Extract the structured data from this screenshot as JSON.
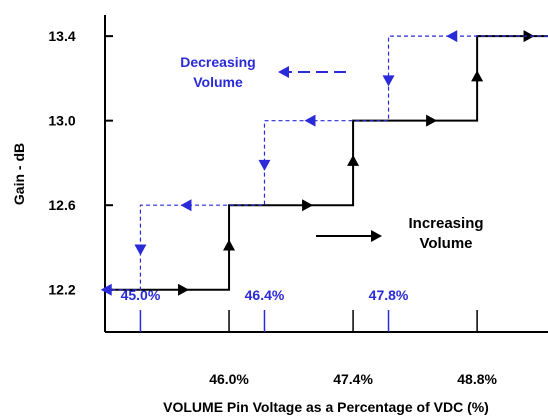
{
  "chart_data": {
    "type": "line",
    "ylabel": "Gain - dB",
    "xlabel": "VOLUME Pin Voltage as a Percentage of VDC (%)",
    "y_ticks": [
      "12.2",
      "12.6",
      "13.0",
      "13.4"
    ],
    "x_ticks": [
      "46.0%",
      "47.4%",
      "48.8%"
    ],
    "x_ticks_decreasing": [
      "45.0%",
      "46.4%",
      "47.8%"
    ],
    "ylim": [
      12.0,
      13.5
    ],
    "xlim": [
      44.6,
      49.6
    ],
    "grid": false,
    "series": [
      {
        "name": "Increasing Volume",
        "color": "#000000",
        "style": "solid",
        "points": [
          [
            44.6,
            12.2
          ],
          [
            46.0,
            12.2
          ],
          [
            46.0,
            12.6
          ],
          [
            47.4,
            12.6
          ],
          [
            47.4,
            13.0
          ],
          [
            48.8,
            13.0
          ],
          [
            48.8,
            13.4
          ],
          [
            49.6,
            13.4
          ]
        ]
      },
      {
        "name": "Decreasing Volume",
        "color": "#2a2ad8",
        "style": "dashed",
        "points": [
          [
            49.6,
            13.4
          ],
          [
            47.8,
            13.4
          ],
          [
            47.8,
            13.0
          ],
          [
            46.4,
            13.0
          ],
          [
            46.4,
            12.6
          ],
          [
            45.0,
            12.6
          ],
          [
            45.0,
            12.2
          ],
          [
            44.6,
            12.2
          ]
        ]
      }
    ],
    "annotations": {
      "increasing": [
        "Increasing",
        "Volume"
      ],
      "decreasing": [
        "Decreasing",
        "Volume"
      ]
    }
  }
}
